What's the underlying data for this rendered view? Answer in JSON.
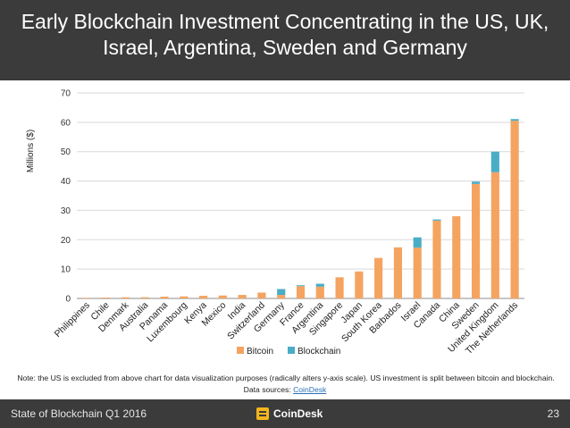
{
  "title": "Early Blockchain Investment Concentrating in the US, UK, Israel, Argentina, Sweden and Germany",
  "note": "Note: the US is excluded from above chart for data visualization purposes (radically alters y-axis scale). US investment is split between bitcoin and blockchain.",
  "sources_label": "Data sources: ",
  "sources_link": "CoinDesk",
  "footer": {
    "left": "State of Blockchain Q1 2016",
    "brand": "CoinDesk",
    "page": "23"
  },
  "colors": {
    "bitcoin": "#f4a460",
    "blockchain": "#4bacc6",
    "header_bg": "#3b3b3b",
    "brand_accent": "#f5b51d"
  },
  "chart_data": {
    "type": "bar",
    "stacked": true,
    "ylabel": "Millions ($)",
    "ylim": [
      0,
      70
    ],
    "yticks": [
      0,
      10,
      20,
      30,
      40,
      50,
      60,
      70
    ],
    "categories": [
      "Philippines",
      "Chile",
      "Denmark",
      "Australia",
      "Panama",
      "Luxembourg",
      "Kenya",
      "Mexico",
      "India",
      "Switzerland",
      "Germany",
      "France",
      "Argentina",
      "Singapore",
      "Japan",
      "South Korea",
      "Barbados",
      "Israel",
      "Canada",
      "China",
      "Sweden",
      "United Kingdom",
      "The Netherlands"
    ],
    "series": [
      {
        "name": "Bitcoin",
        "values": [
          0.2,
          0.3,
          0.4,
          0.4,
          0.6,
          0.7,
          0.9,
          1.0,
          1.2,
          2.0,
          1.2,
          4.2,
          4.0,
          7.2,
          9.2,
          13.8,
          17.4,
          17.3,
          26.5,
          28.0,
          39.0,
          43.0,
          60.5
        ]
      },
      {
        "name": "Blockchain",
        "values": [
          0,
          0,
          0,
          0,
          0,
          0,
          0,
          0,
          0,
          0,
          2.0,
          0.3,
          1.0,
          0,
          0,
          0,
          0,
          3.5,
          0.4,
          0,
          0.8,
          7.0,
          0.6
        ]
      }
    ],
    "legend_position": "bottom",
    "grid": true
  }
}
